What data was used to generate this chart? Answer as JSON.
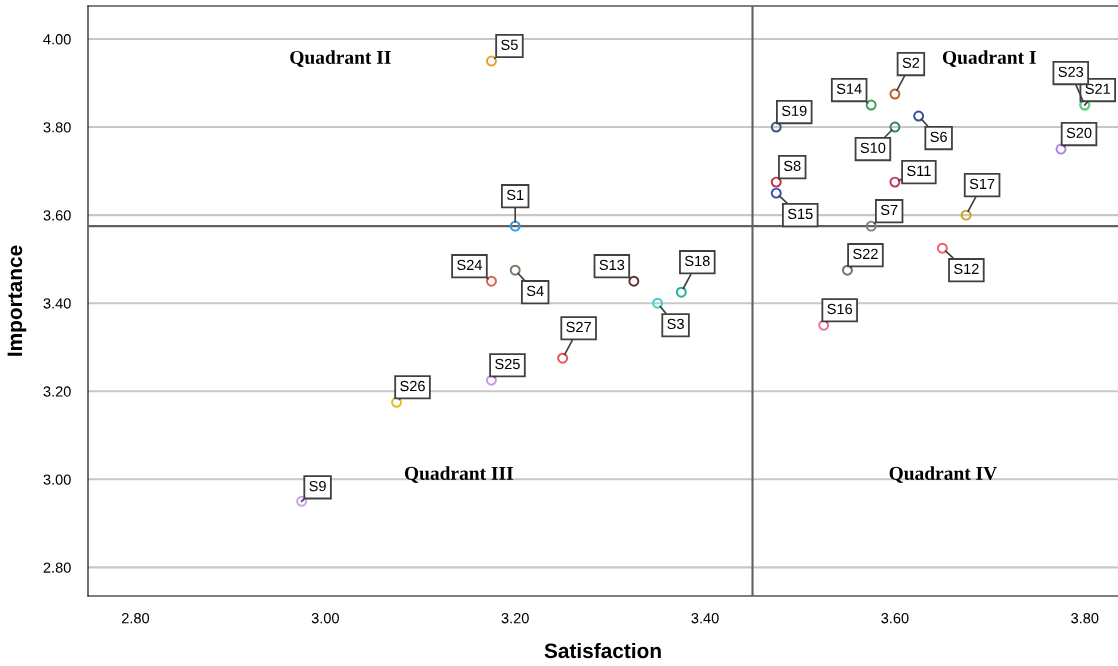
{
  "chart_data": {
    "type": "scatter",
    "xlabel": "Satisfaction",
    "ylabel": "Importance",
    "xlim": [
      2.75,
      3.835
    ],
    "xticks": [
      {
        "value": 2.8,
        "label": "2.80"
      },
      {
        "value": 3.0,
        "label": "3.00"
      },
      {
        "value": 3.2,
        "label": "3.20"
      },
      {
        "value": 3.4,
        "label": "3.40"
      },
      {
        "value": 3.6,
        "label": "3.60"
      },
      {
        "value": 3.8,
        "label": "3.80"
      }
    ],
    "ylim": [
      2.735,
      4.075
    ],
    "yticks": [
      {
        "value": 2.8,
        "label": "2.80"
      },
      {
        "value": 3.0,
        "label": "3.00"
      },
      {
        "value": 3.2,
        "label": "3.20"
      },
      {
        "value": 3.4,
        "label": "3.40"
      },
      {
        "value": 3.6,
        "label": "3.60"
      },
      {
        "value": 3.8,
        "label": "3.80"
      },
      {
        "value": 4.0,
        "label": "4.00"
      }
    ],
    "grid": "y",
    "marker": "circle",
    "x": [
      3.2,
      3.6,
      3.35,
      3.2,
      3.175,
      3.625,
      3.575,
      3.475,
      2.975,
      3.6,
      3.6,
      3.65,
      3.325,
      3.575,
      3.475,
      3.525,
      3.675,
      3.375,
      3.475,
      3.775,
      3.8,
      3.55,
      3.8,
      3.175,
      3.175,
      3.075,
      3.25
    ],
    "values": [
      3.575,
      3.875,
      3.4,
      3.475,
      3.95,
      3.825,
      3.575,
      3.675,
      2.95,
      3.8,
      3.675,
      3.525,
      3.45,
      3.85,
      3.65,
      3.35,
      3.6,
      3.425,
      3.8,
      3.75,
      3.85,
      3.475,
      3.85,
      3.45,
      3.225,
      3.175,
      3.275
    ],
    "colors": [
      "#3399e6",
      "#c06020",
      "#40d0c8",
      "#708060",
      "#f0a030",
      "#3050a0",
      "#808080",
      "#c03040",
      "#d0a0f0",
      "#308080",
      "#c03070",
      "#f06070",
      "#603030",
      "#40a060",
      "#3050c0",
      "#f07090",
      "#d0a020",
      "#20b0a0",
      "#405080",
      "#b080f0",
      "#60d080",
      "#707070",
      "#60d080",
      "#e06050",
      "#d090f0",
      "#e0c020",
      "#f05050"
    ],
    "ref_lines": [
      {
        "axis": "x",
        "value": 3.45,
        "color": "#606060"
      },
      {
        "axis": "y",
        "value": 3.575,
        "color": "#606060"
      }
    ],
    "annotations": [
      {
        "text": "S1",
        "x": 3.2,
        "y": 3.575
      },
      {
        "text": "S2",
        "x": 3.6,
        "y": 3.875
      },
      {
        "text": "S3",
        "x": 3.35,
        "y": 3.4
      },
      {
        "text": "S4",
        "x": 3.2,
        "y": 3.475
      },
      {
        "text": "S5",
        "x": 3.175,
        "y": 3.95
      },
      {
        "text": "S6",
        "x": 3.625,
        "y": 3.825
      },
      {
        "text": "S7",
        "x": 3.575,
        "y": 3.575
      },
      {
        "text": "S8",
        "x": 3.475,
        "y": 3.675
      },
      {
        "text": "S9",
        "x": 2.975,
        "y": 2.95
      },
      {
        "text": "S10",
        "x": 3.6,
        "y": 3.8
      },
      {
        "text": "S11",
        "x": 3.6,
        "y": 3.675
      },
      {
        "text": "S12",
        "x": 3.65,
        "y": 3.525
      },
      {
        "text": "S13",
        "x": 3.325,
        "y": 3.45
      },
      {
        "text": "S14",
        "x": 3.575,
        "y": 3.85
      },
      {
        "text": "S15",
        "x": 3.475,
        "y": 3.65
      },
      {
        "text": "S16",
        "x": 3.525,
        "y": 3.35
      },
      {
        "text": "S17",
        "x": 3.675,
        "y": 3.6
      },
      {
        "text": "S18",
        "x": 3.375,
        "y": 3.425
      },
      {
        "text": "S19",
        "x": 3.475,
        "y": 3.8
      },
      {
        "text": "S20",
        "x": 3.775,
        "y": 3.75
      },
      {
        "text": "S21",
        "x": 3.8,
        "y": 3.85
      },
      {
        "text": "S22",
        "x": 3.55,
        "y": 3.475
      },
      {
        "text": "S23",
        "x": 3.8,
        "y": 3.85
      },
      {
        "text": "S24",
        "x": 3.175,
        "y": 3.45
      },
      {
        "text": "S25",
        "x": 3.175,
        "y": 3.225
      },
      {
        "text": "S26",
        "x": 3.075,
        "y": 3.175
      },
      {
        "text": "S27",
        "x": 3.25,
        "y": 3.275
      },
      "Quadrant I",
      "Quadrant II",
      "Quadrant III",
      "Quadrant IV"
    ]
  }
}
